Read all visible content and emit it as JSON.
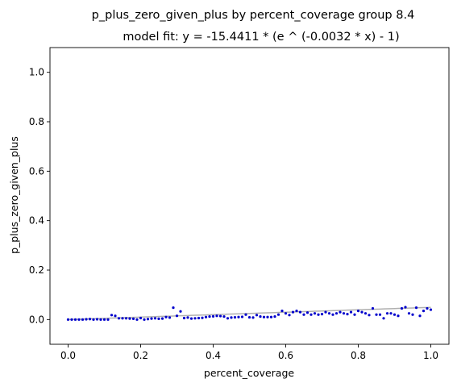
{
  "chart_data": {
    "type": "scatter",
    "title": "p_plus_zero_given_plus by percent_coverage group 8.4",
    "subtitle": "model fit: y = -15.4411 * (e ^ (-0.0032 * x) - 1)",
    "xlabel": "percent_coverage",
    "ylabel": "p_plus_zero_given_plus",
    "xlim": [
      -0.05,
      1.05
    ],
    "ylim": [
      -0.1,
      1.1
    ],
    "xticks": [
      "0.0",
      "0.2",
      "0.4",
      "0.6",
      "0.8",
      "1.0"
    ],
    "yticks": [
      "0.0",
      "0.2",
      "0.4",
      "0.6",
      "0.8",
      "1.0"
    ],
    "grid": false,
    "colors": {
      "points": "#0000cc",
      "fit": "#b0b0b0"
    },
    "series": [
      {
        "x": [
          0.0,
          0.01,
          0.02,
          0.03,
          0.04,
          0.05,
          0.06,
          0.07,
          0.08,
          0.09,
          0.1,
          0.11,
          0.12,
          0.13,
          0.14,
          0.15,
          0.16,
          0.17,
          0.18,
          0.19,
          0.2,
          0.21,
          0.22,
          0.23,
          0.24,
          0.25,
          0.26,
          0.27,
          0.28,
          0.29,
          0.3,
          0.31,
          0.32,
          0.33,
          0.34,
          0.35,
          0.36,
          0.37,
          0.38,
          0.39,
          0.4,
          0.41,
          0.42,
          0.43,
          0.44,
          0.45,
          0.46,
          0.47,
          0.48,
          0.49,
          0.5,
          0.51,
          0.52,
          0.53,
          0.54,
          0.55,
          0.56,
          0.57,
          0.58,
          0.59,
          0.6,
          0.61,
          0.62,
          0.63,
          0.64,
          0.65,
          0.66,
          0.67,
          0.68,
          0.69,
          0.7,
          0.71,
          0.72,
          0.73,
          0.74,
          0.75,
          0.76,
          0.77,
          0.78,
          0.79,
          0.8,
          0.81,
          0.82,
          0.83,
          0.84,
          0.85,
          0.86,
          0.87,
          0.88,
          0.89,
          0.9,
          0.91,
          0.92,
          0.93,
          0.94,
          0.95,
          0.96,
          0.97,
          0.98,
          0.99,
          1.0
        ],
        "y": [
          0.0,
          0.0,
          0.0,
          0.0,
          0.0,
          0.001,
          0.002,
          0.0,
          0.001,
          0.0,
          0.0,
          0.0,
          0.018,
          0.015,
          0.005,
          0.005,
          0.005,
          0.004,
          0.003,
          0.0,
          0.006,
          0.0,
          0.002,
          0.004,
          0.005,
          0.003,
          0.004,
          0.01,
          0.008,
          0.048,
          0.015,
          0.033,
          0.006,
          0.008,
          0.004,
          0.005,
          0.006,
          0.007,
          0.01,
          0.012,
          0.013,
          0.015,
          0.014,
          0.012,
          0.005,
          0.008,
          0.009,
          0.01,
          0.011,
          0.02,
          0.009,
          0.008,
          0.018,
          0.012,
          0.01,
          0.01,
          0.01,
          0.012,
          0.02,
          0.035,
          0.025,
          0.018,
          0.03,
          0.035,
          0.03,
          0.02,
          0.028,
          0.02,
          0.025,
          0.02,
          0.022,
          0.03,
          0.025,
          0.02,
          0.025,
          0.03,
          0.025,
          0.022,
          0.03,
          0.02,
          0.035,
          0.03,
          0.025,
          0.018,
          0.045,
          0.02,
          0.02,
          0.005,
          0.025,
          0.025,
          0.02,
          0.015,
          0.045,
          0.05,
          0.025,
          0.02,
          0.048,
          0.015,
          0.035,
          0.045,
          0.04
        ]
      }
    ],
    "fit": {
      "a": -15.4411,
      "b": -0.0032,
      "x_range": [
        0.0,
        1.0
      ]
    }
  }
}
